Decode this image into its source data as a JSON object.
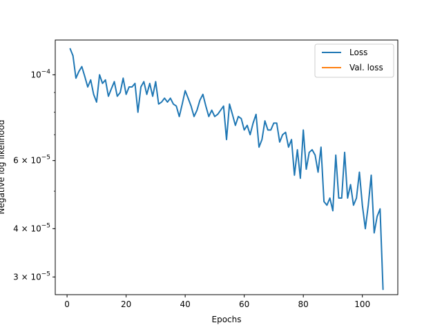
{
  "chart_data": {
    "type": "line",
    "title": "",
    "xlabel": "Epochs",
    "ylabel": "Negative log likelihood",
    "yscale": "log",
    "xlim": [
      -4,
      112
    ],
    "ylim": [
      2.7e-05,
      0.000123
    ],
    "grid": false,
    "legend_position": "upper right",
    "x_ticks": [
      0,
      20,
      40,
      60,
      80,
      100
    ],
    "y_ticks": [
      {
        "value": 0.0001,
        "mantissa": "",
        "exponent": "−4"
      },
      {
        "value": 6e-05,
        "mantissa": "6",
        "exponent": "−5"
      },
      {
        "value": 4e-05,
        "mantissa": "4",
        "exponent": "−5"
      },
      {
        "value": 3e-05,
        "mantissa": "3",
        "exponent": "−5"
      }
    ],
    "series": [
      {
        "name": "Loss",
        "color": "#1f77b4",
        "x": [
          1,
          2,
          3,
          4,
          5,
          6,
          7,
          8,
          9,
          10,
          11,
          12,
          13,
          14,
          15,
          16,
          17,
          18,
          19,
          20,
          21,
          22,
          23,
          24,
          25,
          26,
          27,
          28,
          29,
          30,
          31,
          32,
          33,
          34,
          35,
          36,
          37,
          38,
          39,
          40,
          41,
          42,
          43,
          44,
          45,
          46,
          47,
          48,
          49,
          50,
          51,
          52,
          53,
          54,
          55,
          56,
          57,
          58,
          59,
          60,
          61,
          62,
          63,
          64,
          65,
          66,
          67,
          68,
          69,
          70,
          71,
          72,
          73,
          74,
          75,
          76,
          77,
          78,
          79,
          80,
          81,
          82,
          83,
          84,
          85,
          86,
          87,
          88,
          89,
          90,
          91,
          92,
          93,
          94,
          95,
          96,
          97,
          98,
          99,
          100,
          101,
          102,
          103,
          104,
          105,
          106,
          107
        ],
        "y": [
          0.000117,
          0.000112,
          9.8e-05,
          0.000102,
          0.000105,
          9.9e-05,
          9.3e-05,
          9.7e-05,
          8.9e-05,
          8.5e-05,
          0.0001,
          9.5e-05,
          9.7e-05,
          8.8e-05,
          9.2e-05,
          9.6e-05,
          8.8e-05,
          9e-05,
          9.8e-05,
          8.9e-05,
          9.3e-05,
          9.3e-05,
          9.5e-05,
          8e-05,
          9.3e-05,
          9.6e-05,
          8.9e-05,
          9.5e-05,
          8.8e-05,
          9.6e-05,
          8.4e-05,
          8.5e-05,
          8.7e-05,
          8.5e-05,
          8.7e-05,
          8.4e-05,
          8.3e-05,
          7.8e-05,
          8.4e-05,
          9.1e-05,
          8.7e-05,
          8.3e-05,
          7.8e-05,
          8.1e-05,
          8.6e-05,
          8.9e-05,
          8.3e-05,
          7.8e-05,
          8.1e-05,
          7.8e-05,
          7.9e-05,
          8.1e-05,
          8.3e-05,
          6.8e-05,
          8.4e-05,
          7.9e-05,
          7.4e-05,
          7.8e-05,
          7.7e-05,
          7.2e-05,
          7.4e-05,
          7e-05,
          7.5e-05,
          7.9e-05,
          6.5e-05,
          6.8e-05,
          7.6e-05,
          7.2e-05,
          7.2e-05,
          7.5e-05,
          7.5e-05,
          6.7e-05,
          7e-05,
          7.1e-05,
          6.5e-05,
          6.8e-05,
          5.5e-05,
          6.4e-05,
          5.4e-05,
          7.2e-05,
          5.7e-05,
          6.3e-05,
          6.4e-05,
          6.2e-05,
          5.6e-05,
          6.5e-05,
          4.7e-05,
          4.6e-05,
          4.8e-05,
          4.45e-05,
          6.2e-05,
          4.8e-05,
          4.8e-05,
          6.3e-05,
          4.8e-05,
          5.2e-05,
          4.6e-05,
          4.8e-05,
          5.6e-05,
          4.6e-05,
          4e-05,
          4.6e-05,
          5.5e-05,
          3.9e-05,
          4.3e-05,
          4.5e-05,
          2.78e-05
        ]
      },
      {
        "name": "Val. loss",
        "color": "#ff7f0e",
        "x": [],
        "y": []
      }
    ]
  }
}
